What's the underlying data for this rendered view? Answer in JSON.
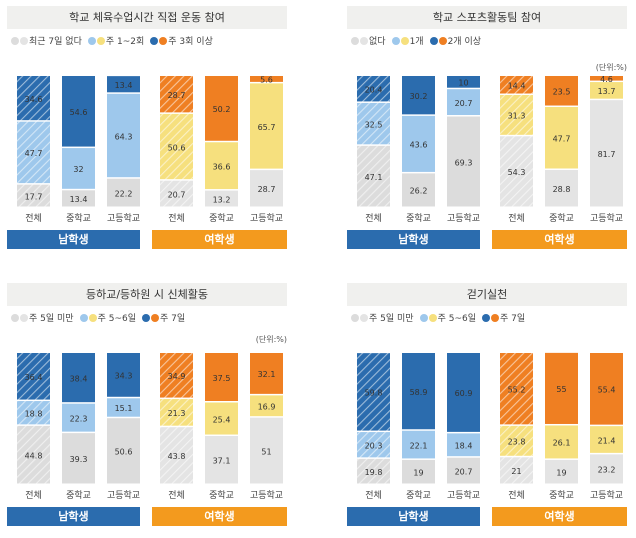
{
  "colors": {
    "male_none": "#dcdcdc",
    "male_mid": "#9ec8ec",
    "male_high": "#2b6cae",
    "female_none": "#e4e4e4",
    "female_mid": "#f6e07e",
    "female_high": "#ef7f22",
    "male_bar": "#2b6cae",
    "female_bar": "#f39a1e",
    "title_bg": "#f0f0ee"
  },
  "chart_data": [
    {
      "type": "stacked_bar",
      "title": "학교 체육수업시간 직접 운동 참여",
      "unit": "",
      "legend": [
        "최근 7일 없다",
        "주 1~2회",
        "주 3회 이상"
      ],
      "groups": [
        {
          "label": "남학생",
          "categories": [
            "전체",
            "중학교",
            "고등학교"
          ],
          "series": [
            [
              17.7,
              13.4,
              22.2
            ],
            [
              47.7,
              32.0,
              64.3
            ],
            [
              34.6,
              54.6,
              13.4
            ]
          ]
        },
        {
          "label": "여학생",
          "categories": [
            "전체",
            "중학교",
            "고등학교"
          ],
          "series": [
            [
              20.7,
              13.2,
              28.7
            ],
            [
              50.6,
              36.6,
              65.7
            ],
            [
              28.7,
              50.2,
              5.6
            ]
          ]
        }
      ]
    },
    {
      "type": "stacked_bar",
      "title": "학교 스포츠활동팀 참여",
      "unit": "(단위:%)",
      "legend": [
        "없다",
        "1개",
        "2개 이상"
      ],
      "groups": [
        {
          "label": "남학생",
          "categories": [
            "전체",
            "중학교",
            "고등학교"
          ],
          "series": [
            [
              47.1,
              26.2,
              69.3
            ],
            [
              32.5,
              43.6,
              20.7
            ],
            [
              20.4,
              30.2,
              10.0
            ]
          ]
        },
        {
          "label": "여학생",
          "categories": [
            "전체",
            "중학교",
            "고등학교"
          ],
          "series": [
            [
              54.3,
              28.8,
              81.7
            ],
            [
              31.3,
              47.7,
              13.7
            ],
            [
              14.4,
              23.5,
              4.6
            ]
          ]
        }
      ]
    },
    {
      "type": "stacked_bar",
      "title": "등하교/등하원 시 신체활동",
      "unit": "(단위:%)",
      "legend": [
        "주 5일 미만",
        "주 5~6일",
        "주 7일"
      ],
      "groups": [
        {
          "label": "남학생",
          "categories": [
            "전체",
            "중학교",
            "고등학교"
          ],
          "series": [
            [
              44.8,
              39.3,
              50.6
            ],
            [
              18.8,
              22.3,
              15.1
            ],
            [
              36.4,
              38.4,
              34.3
            ]
          ]
        },
        {
          "label": "여학생",
          "categories": [
            "전체",
            "중학교",
            "고등학교"
          ],
          "series": [
            [
              43.8,
              37.1,
              51.0
            ],
            [
              21.3,
              25.4,
              16.9
            ],
            [
              34.9,
              37.5,
              32.1
            ]
          ]
        }
      ]
    },
    {
      "type": "stacked_bar",
      "title": "걷기실천",
      "unit": "",
      "legend": [
        "주 5일 미만",
        "주 5~6일",
        "주 7일"
      ],
      "groups": [
        {
          "label": "남학생",
          "categories": [
            "전체",
            "중학교",
            "고등학교"
          ],
          "series": [
            [
              19.8,
              19.0,
              20.7
            ],
            [
              20.3,
              22.1,
              18.4
            ],
            [
              59.8,
              58.9,
              60.9
            ]
          ]
        },
        {
          "label": "여학생",
          "categories": [
            "전체",
            "중학교",
            "고등학교"
          ],
          "series": [
            [
              21.0,
              19.0,
              23.2
            ],
            [
              23.8,
              26.1,
              21.4
            ],
            [
              55.2,
              55.0,
              55.4
            ]
          ]
        }
      ]
    }
  ]
}
